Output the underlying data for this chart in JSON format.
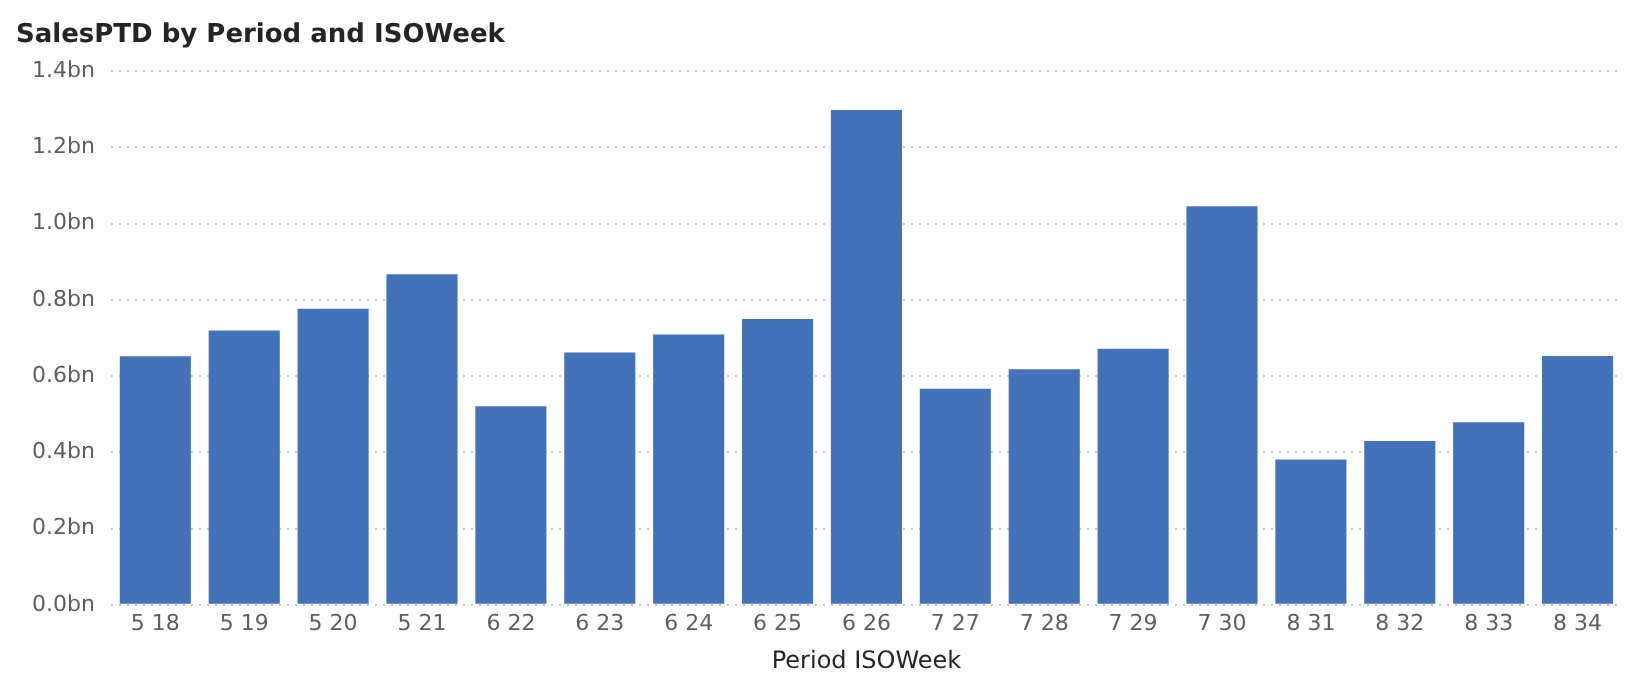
{
  "chart_data": {
    "type": "bar",
    "title": "SalesPTD by Period and ISOWeek",
    "xlabel": "Period ISOWeek",
    "categories": [
      "5 18",
      "5 19",
      "5 20",
      "5 21",
      "6 22",
      "6 23",
      "6 24",
      "6 25",
      "6 26",
      "7 27",
      "7 28",
      "7 29",
      "7 30",
      "8 31",
      "8 32",
      "8 33",
      "8 34"
    ],
    "values": [
      0.652,
      0.72,
      0.777,
      0.867,
      0.521,
      0.662,
      0.709,
      0.75,
      1.298,
      0.567,
      0.618,
      0.672,
      1.046,
      0.381,
      0.43,
      0.479,
      0.653
    ],
    "color": "#4472b8",
    "ylim": [
      0,
      1.4
    ],
    "yticks": [
      {
        "value": 0,
        "label": "0.0bn"
      },
      {
        "value": 0.2,
        "label": "0.2bn"
      },
      {
        "value": 0.4,
        "label": "0.4bn"
      },
      {
        "value": 0.6,
        "label": "0.6bn"
      },
      {
        "value": 0.8,
        "label": "0.8bn"
      },
      {
        "value": 1,
        "label": "1.0bn"
      },
      {
        "value": 1.2,
        "label": "1.2bn"
      },
      {
        "value": 1.4,
        "label": "1.4bn"
      }
    ],
    "grid": "y",
    "legend": false
  }
}
